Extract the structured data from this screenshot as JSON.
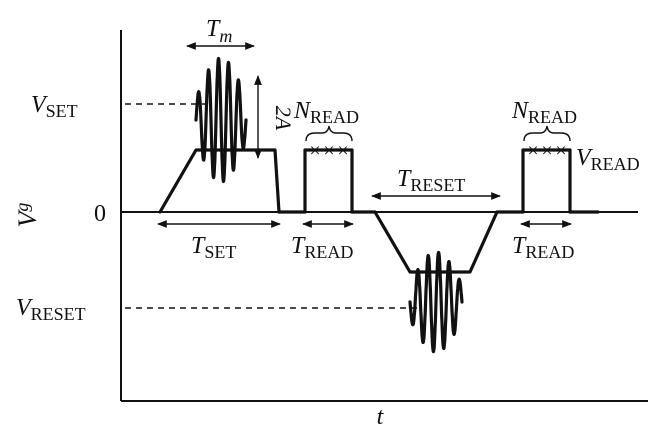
{
  "figure": {
    "axes": {
      "y_axis_label": {
        "main": "V",
        "sub": "g"
      },
      "x_axis_label": "t",
      "zero_label": "0"
    },
    "levels": {
      "v_set": {
        "main": "V",
        "sub": "SET"
      },
      "v_reset": {
        "main": "V",
        "sub": "RESET"
      },
      "v_read": {
        "main": "V",
        "sub": "READ"
      }
    },
    "annotations": {
      "t_m": {
        "main": "T",
        "sub": "m"
      },
      "two_a": "2A",
      "n_read_1": {
        "main": "N",
        "sub": "READ"
      },
      "n_read_2": {
        "main": "N",
        "sub": "READ"
      },
      "t_set": {
        "main": "T",
        "sub": "SET"
      },
      "t_read_1": {
        "main": "T",
        "sub": "READ"
      },
      "t_reset": {
        "main": "T",
        "sub": "RESET"
      },
      "t_read_2": {
        "main": "T",
        "sub": "READ"
      }
    },
    "read_marker_glyph": "×",
    "read_markers_per_pulse": 3,
    "oscillations_per_pulse": 5,
    "colors": {
      "ink": "#111111",
      "background": "#ffffff"
    }
  }
}
